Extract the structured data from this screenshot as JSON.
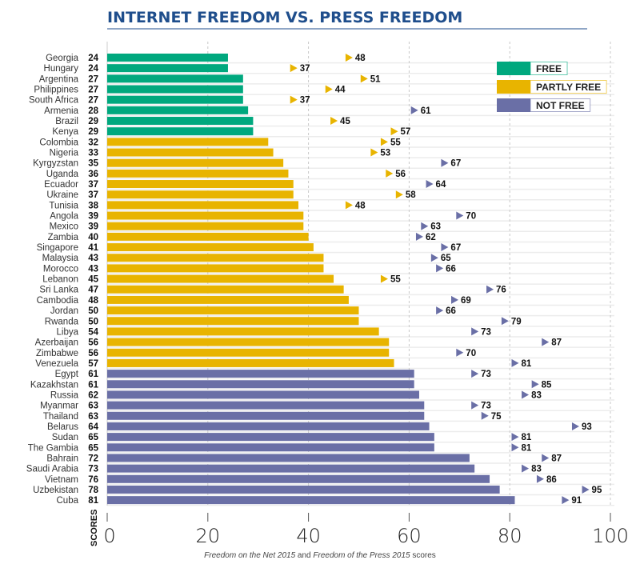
{
  "chart_data": {
    "type": "bar",
    "title": "INTERNET FREEDOM VS. PRESS FREEDOM",
    "ylabel": "SCORES",
    "caption": {
      "part1": "Freedom on the Net 2015",
      "part2": " and ",
      "part3": "Freedom of the Press 2015",
      "part4": " scores"
    },
    "xlim": [
      0,
      100
    ],
    "xticks": [
      0,
      20,
      40,
      60,
      80,
      100
    ],
    "legend": [
      {
        "label": "FREE",
        "color": "#00a87e"
      },
      {
        "label": "PARTLY FREE",
        "color": "#e8b400"
      },
      {
        "label": "NOT FREE",
        "color": "#6a6fa6"
      }
    ],
    "legend_position": "top-right",
    "thresholds": {
      "free_max": 30,
      "partly_free_max": 60
    },
    "categories": [
      "Georgia",
      "Hungary",
      "Argentina",
      "Philippines",
      "South Africa",
      "Armenia",
      "Brazil",
      "Kenya",
      "Colombia",
      "Nigeria",
      "Kyrgyzstan",
      "Uganda",
      "Ecuador",
      "Ukraine",
      "Tunisia",
      "Angola",
      "Mexico",
      "Zambia",
      "Singapore",
      "Malaysia",
      "Morocco",
      "Lebanon",
      "Sri Lanka",
      "Cambodia",
      "Jordan",
      "Rwanda",
      "Libya",
      "Azerbaijan",
      "Zimbabwe",
      "Venezuela",
      "Egypt",
      "Kazakhstan",
      "Russia",
      "Myanmar",
      "Thailand",
      "Belarus",
      "Sudan",
      "The Gambia",
      "Bahrain",
      "Saudi Arabia",
      "Vietnam",
      "Uzbekistan",
      "Cuba"
    ],
    "series": [
      {
        "name": "Freedom on the Net 2015",
        "marker": "bar",
        "values": [
          24,
          24,
          27,
          27,
          27,
          28,
          29,
          29,
          32,
          33,
          35,
          36,
          37,
          37,
          38,
          39,
          39,
          40,
          41,
          43,
          43,
          45,
          47,
          48,
          50,
          50,
          54,
          56,
          56,
          57,
          61,
          61,
          62,
          63,
          63,
          64,
          65,
          65,
          72,
          73,
          76,
          78,
          81
        ]
      },
      {
        "name": "Freedom of the Press 2015",
        "marker": "triangle",
        "values": [
          48,
          37,
          51,
          44,
          37,
          61,
          45,
          57,
          55,
          53,
          67,
          56,
          64,
          58,
          48,
          70,
          63,
          62,
          67,
          65,
          66,
          55,
          76,
          69,
          66,
          79,
          73,
          87,
          70,
          81,
          73,
          85,
          83,
          73,
          75,
          93,
          81,
          81,
          87,
          83,
          86,
          95,
          91
        ]
      }
    ]
  }
}
